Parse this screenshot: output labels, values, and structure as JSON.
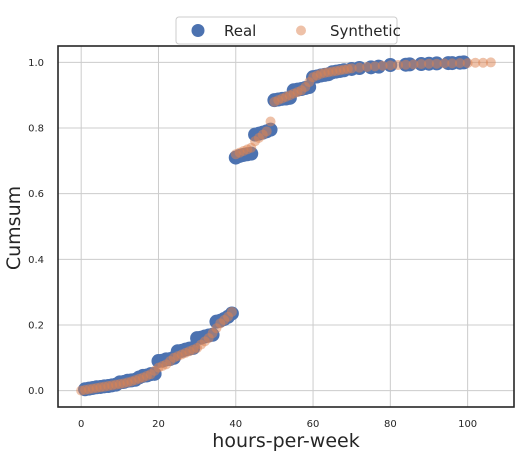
{
  "chart_data": {
    "type": "scatter",
    "xlabel": "hours-per-week",
    "ylabel": "Cumsum",
    "xlim": [
      -6,
      112
    ],
    "ylim": [
      -0.05,
      1.05
    ],
    "x_ticks": [
      0,
      20,
      40,
      60,
      80,
      100
    ],
    "y_ticks": [
      0.0,
      0.2,
      0.4,
      0.6,
      0.8,
      1.0
    ],
    "x_tick_labels": [
      "0",
      "20",
      "40",
      "60",
      "80",
      "100"
    ],
    "y_tick_labels": [
      "0.0",
      "0.2",
      "0.4",
      "0.6",
      "0.8",
      "1.0"
    ],
    "grid": true,
    "legend_position": "top-center",
    "series": [
      {
        "name": "Real",
        "color": "#4c72b0",
        "alpha": 1.0,
        "marker_size": "large",
        "x": [
          1,
          2,
          3,
          4,
          5,
          6,
          7,
          8,
          9,
          10,
          11,
          12,
          13,
          14,
          15,
          16,
          17,
          18,
          19,
          20,
          21,
          22,
          23,
          24,
          25,
          26,
          27,
          28,
          29,
          30,
          31,
          32,
          33,
          34,
          35,
          36,
          37,
          38,
          39,
          40,
          41,
          42,
          43,
          44,
          45,
          46,
          47,
          48,
          49,
          50,
          51,
          52,
          53,
          54,
          55,
          56,
          57,
          58,
          59,
          60,
          61,
          62,
          63,
          64,
          65,
          66,
          67,
          68,
          70,
          72,
          75,
          77,
          80,
          84,
          85,
          88,
          90,
          92,
          95,
          96,
          98,
          99
        ],
        "y": [
          0.004,
          0.006,
          0.008,
          0.01,
          0.011,
          0.013,
          0.014,
          0.016,
          0.018,
          0.025,
          0.026,
          0.03,
          0.031,
          0.033,
          0.04,
          0.045,
          0.046,
          0.05,
          0.051,
          0.09,
          0.091,
          0.095,
          0.096,
          0.1,
          0.12,
          0.121,
          0.125,
          0.128,
          0.13,
          0.16,
          0.161,
          0.165,
          0.168,
          0.17,
          0.21,
          0.213,
          0.218,
          0.225,
          0.235,
          0.71,
          0.715,
          0.718,
          0.72,
          0.722,
          0.78,
          0.783,
          0.786,
          0.79,
          0.795,
          0.885,
          0.887,
          0.889,
          0.89,
          0.892,
          0.915,
          0.917,
          0.919,
          0.922,
          0.925,
          0.955,
          0.957,
          0.96,
          0.962,
          0.964,
          0.97,
          0.972,
          0.974,
          0.976,
          0.98,
          0.983,
          0.985,
          0.987,
          0.992,
          0.993,
          0.994,
          0.995,
          0.996,
          0.997,
          0.998,
          0.998,
          0.999,
          1.0
        ]
      },
      {
        "name": "Synthetic",
        "color": "#dd8452",
        "alpha": 0.5,
        "marker_size": "small",
        "x": [
          0,
          1,
          2,
          3,
          4,
          5,
          6,
          7,
          8,
          9,
          10,
          11,
          12,
          13,
          14,
          15,
          16,
          17,
          18,
          19,
          20,
          21,
          22,
          23,
          24,
          25,
          26,
          27,
          28,
          29,
          30,
          31,
          32,
          33,
          34,
          35,
          36,
          37,
          38,
          39,
          40,
          41,
          42,
          43,
          44,
          45,
          46,
          47,
          48,
          49,
          50,
          51,
          52,
          53,
          54,
          55,
          56,
          57,
          58,
          59,
          60,
          61,
          62,
          63,
          64,
          65,
          66,
          67,
          68,
          69,
          70,
          72,
          74,
          76,
          78,
          80,
          82,
          84,
          86,
          88,
          90,
          92,
          94,
          96,
          98,
          100,
          102,
          104,
          106
        ],
        "y": [
          0.0,
          0.002,
          0.004,
          0.006,
          0.008,
          0.01,
          0.012,
          0.014,
          0.016,
          0.018,
          0.02,
          0.022,
          0.025,
          0.028,
          0.032,
          0.036,
          0.04,
          0.045,
          0.05,
          0.06,
          0.07,
          0.075,
          0.08,
          0.09,
          0.1,
          0.105,
          0.11,
          0.115,
          0.12,
          0.125,
          0.13,
          0.14,
          0.15,
          0.16,
          0.175,
          0.19,
          0.205,
          0.215,
          0.225,
          0.24,
          0.72,
          0.725,
          0.73,
          0.735,
          0.74,
          0.76,
          0.77,
          0.78,
          0.79,
          0.82,
          0.88,
          0.885,
          0.89,
          0.895,
          0.9,
          0.905,
          0.91,
          0.915,
          0.925,
          0.94,
          0.955,
          0.96,
          0.965,
          0.968,
          0.97,
          0.972,
          0.974,
          0.976,
          0.978,
          0.98,
          0.982,
          0.984,
          0.986,
          0.988,
          0.99,
          0.991,
          0.992,
          0.993,
          0.994,
          0.995,
          0.996,
          0.996,
          0.997,
          0.997,
          0.998,
          0.998,
          0.999,
          0.999,
          1.0
        ]
      }
    ]
  }
}
